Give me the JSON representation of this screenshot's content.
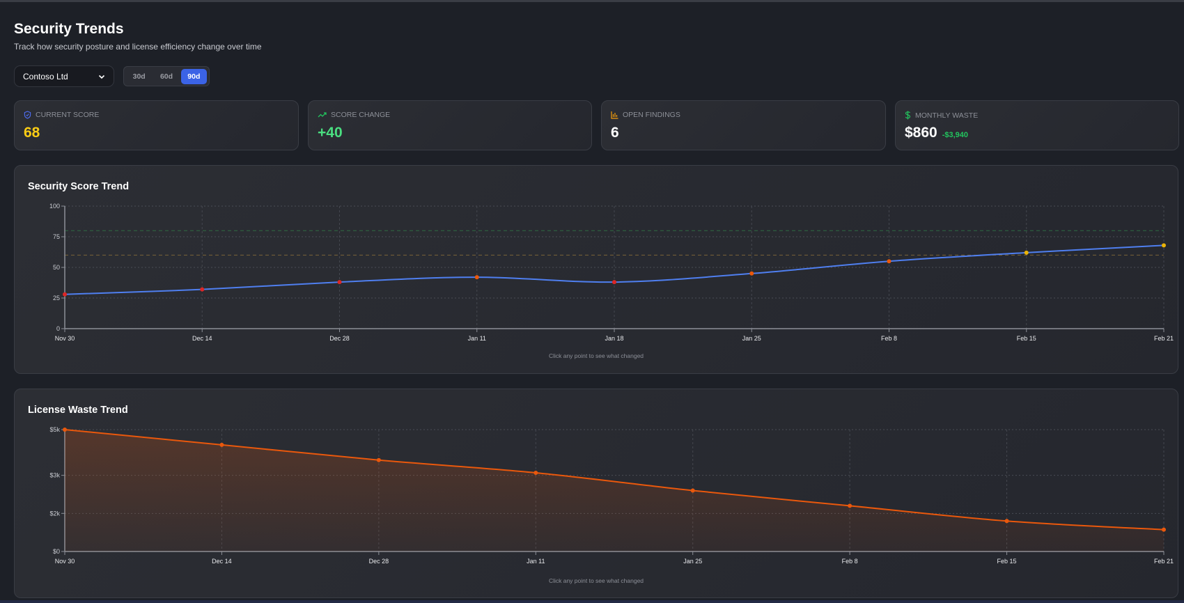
{
  "header": {
    "title": "Security Trends",
    "subtitle": "Track how security posture and license efficiency change over time"
  },
  "controls": {
    "tenant": "Contoso Ltd",
    "ranges": [
      "30d",
      "60d",
      "90d"
    ],
    "active_range": "90d",
    "accent": "#3b63e6"
  },
  "stats": [
    {
      "label": "Current Score",
      "value": "68",
      "icon": "shield-icon",
      "color": "#facc15",
      "icon_color": "#4f6ef7"
    },
    {
      "label": "Score Change",
      "value": "+40",
      "icon": "trending-up-icon",
      "color": "#4ade80",
      "icon_color": "#22c55e"
    },
    {
      "label": "Open Findings",
      "value": "6",
      "icon": "bar-chart-icon",
      "color": "#ffffff",
      "icon_color": "#f59e0b"
    },
    {
      "label": "Monthly Waste",
      "value": "$860",
      "delta": "-$3,940",
      "icon": "dollar-icon",
      "color": "#ffffff",
      "icon_color": "#22c55e"
    }
  ],
  "chart_data": [
    {
      "type": "line",
      "title": "Security Score Trend",
      "hint": "Click any point to see what changed",
      "categories": [
        "Nov 30",
        "Dec 14",
        "Dec 28",
        "Jan 11",
        "Jan 18",
        "Jan 25",
        "Feb 8",
        "Feb 15",
        "Feb 21"
      ],
      "values": [
        28,
        32,
        38,
        42,
        38,
        45,
        55,
        62,
        68
      ],
      "ylim": [
        0,
        100
      ],
      "yticks": [
        0,
        25,
        50,
        75,
        100
      ],
      "reference_lines": [
        {
          "value": 80,
          "color": "#2f6b43"
        },
        {
          "value": 60,
          "color": "#7a6338"
        }
      ],
      "line_color": "#4f7ff0",
      "point_colors": {
        "below_40": "#dc2626",
        "40_to_59": "#ea580c",
        "60_plus": "#eab308"
      },
      "grid": true
    },
    {
      "type": "area",
      "title": "License Waste Trend",
      "hint": "Click any point to see what changed",
      "categories": [
        "Nov 30",
        "Dec 14",
        "Dec 28",
        "Jan 11",
        "Jan 25",
        "Feb 8",
        "Feb 15",
        "Feb 21"
      ],
      "values": [
        4800,
        4200,
        3600,
        3100,
        2400,
        1800,
        1200,
        860
      ],
      "ylim": [
        0,
        4800
      ],
      "yticks": [
        0,
        1500,
        3000,
        4800
      ],
      "ytick_labels": [
        "$0",
        "$2k",
        "$3k",
        "$5k"
      ],
      "line_color": "#ea580c",
      "grid": true
    }
  ]
}
